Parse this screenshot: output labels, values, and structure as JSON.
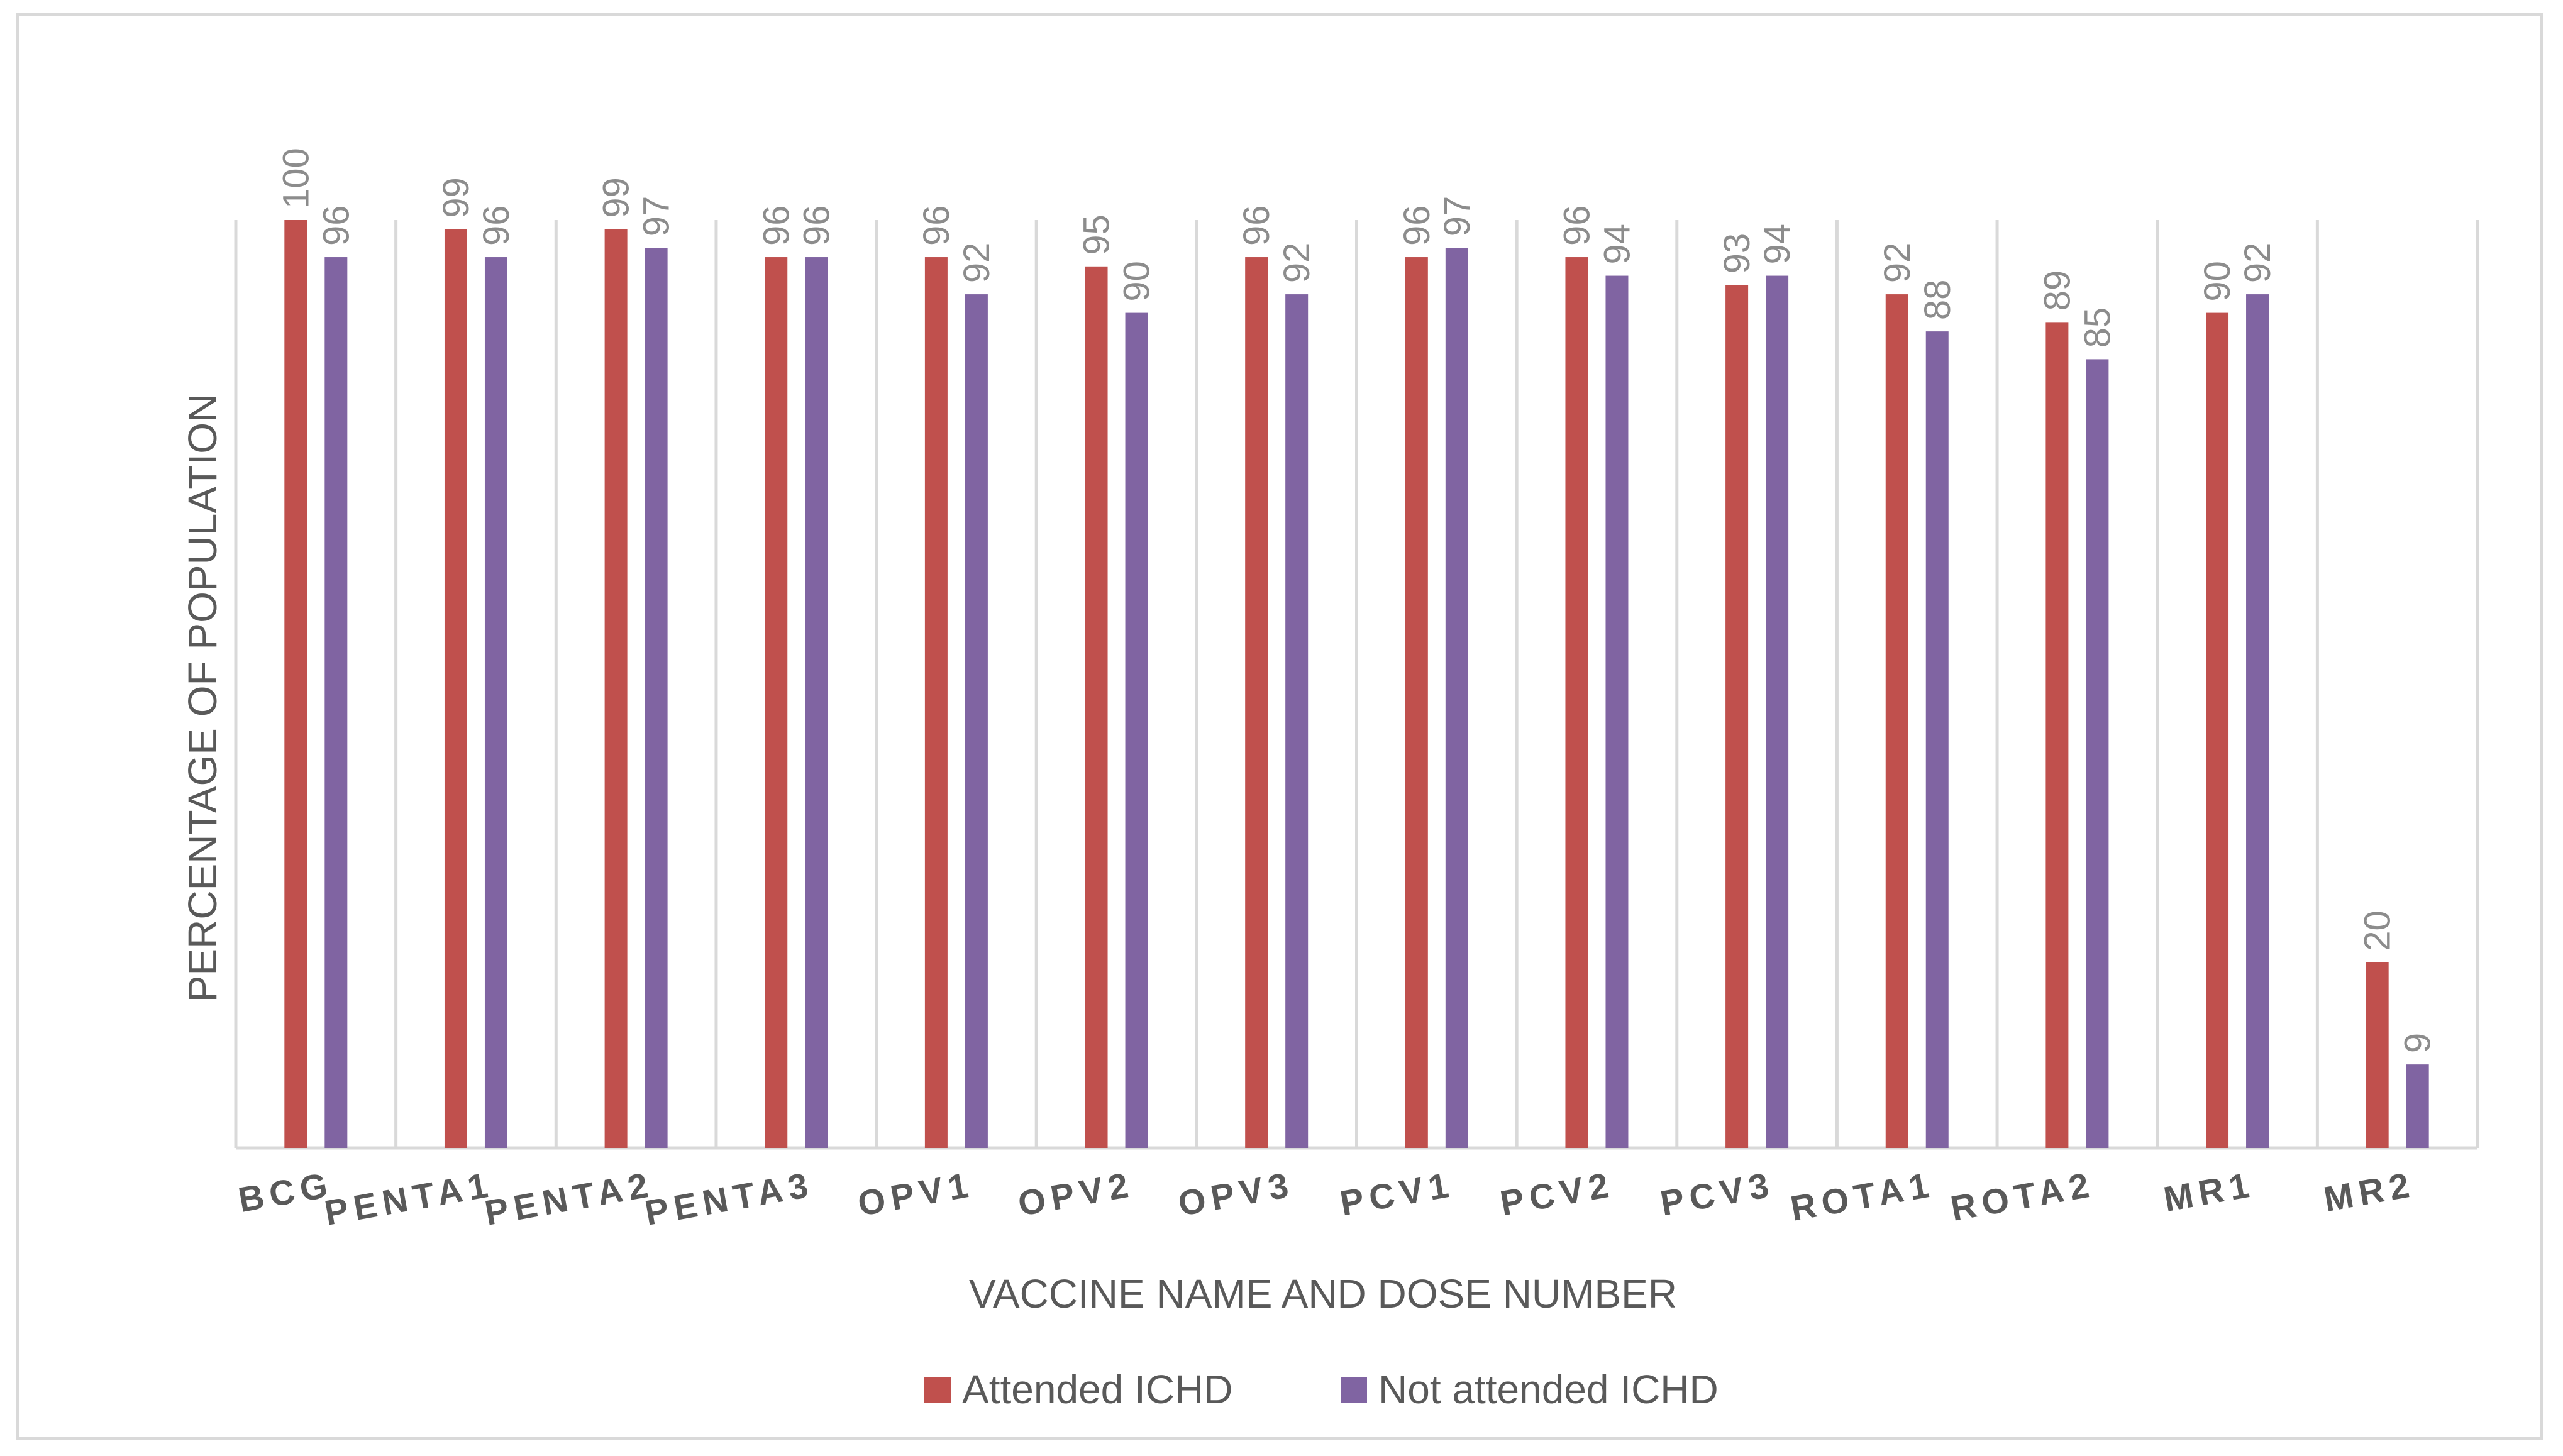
{
  "chart_data": {
    "type": "bar",
    "title": "",
    "xlabel": "VACCINE NAME AND DOSE NUMBER",
    "ylabel": "PERCENTAGE OF POPULATION",
    "ylim": [
      0,
      100
    ],
    "grid": "vertical category separators",
    "legend_position": "bottom",
    "categories": [
      "BCG",
      "PENTA1",
      "PENTA2",
      "PENTA3",
      "OPV1",
      "OPV2",
      "OPV3",
      "PCV1",
      "PCV2",
      "PCV3",
      "ROTA1",
      "ROTA2",
      "MR1",
      "MR2"
    ],
    "series": [
      {
        "name": "Attended ICHD",
        "color": "#c0504d",
        "values": [
          100,
          99,
          99,
          96,
          96,
          95,
          96,
          96,
          96,
          93,
          92,
          89,
          90,
          20
        ]
      },
      {
        "name": "Not attended ICHD",
        "color": "#8064a2",
        "values": [
          96,
          96,
          97,
          96,
          92,
          90,
          92,
          97,
          94,
          94,
          88,
          85,
          92,
          9
        ]
      }
    ]
  }
}
